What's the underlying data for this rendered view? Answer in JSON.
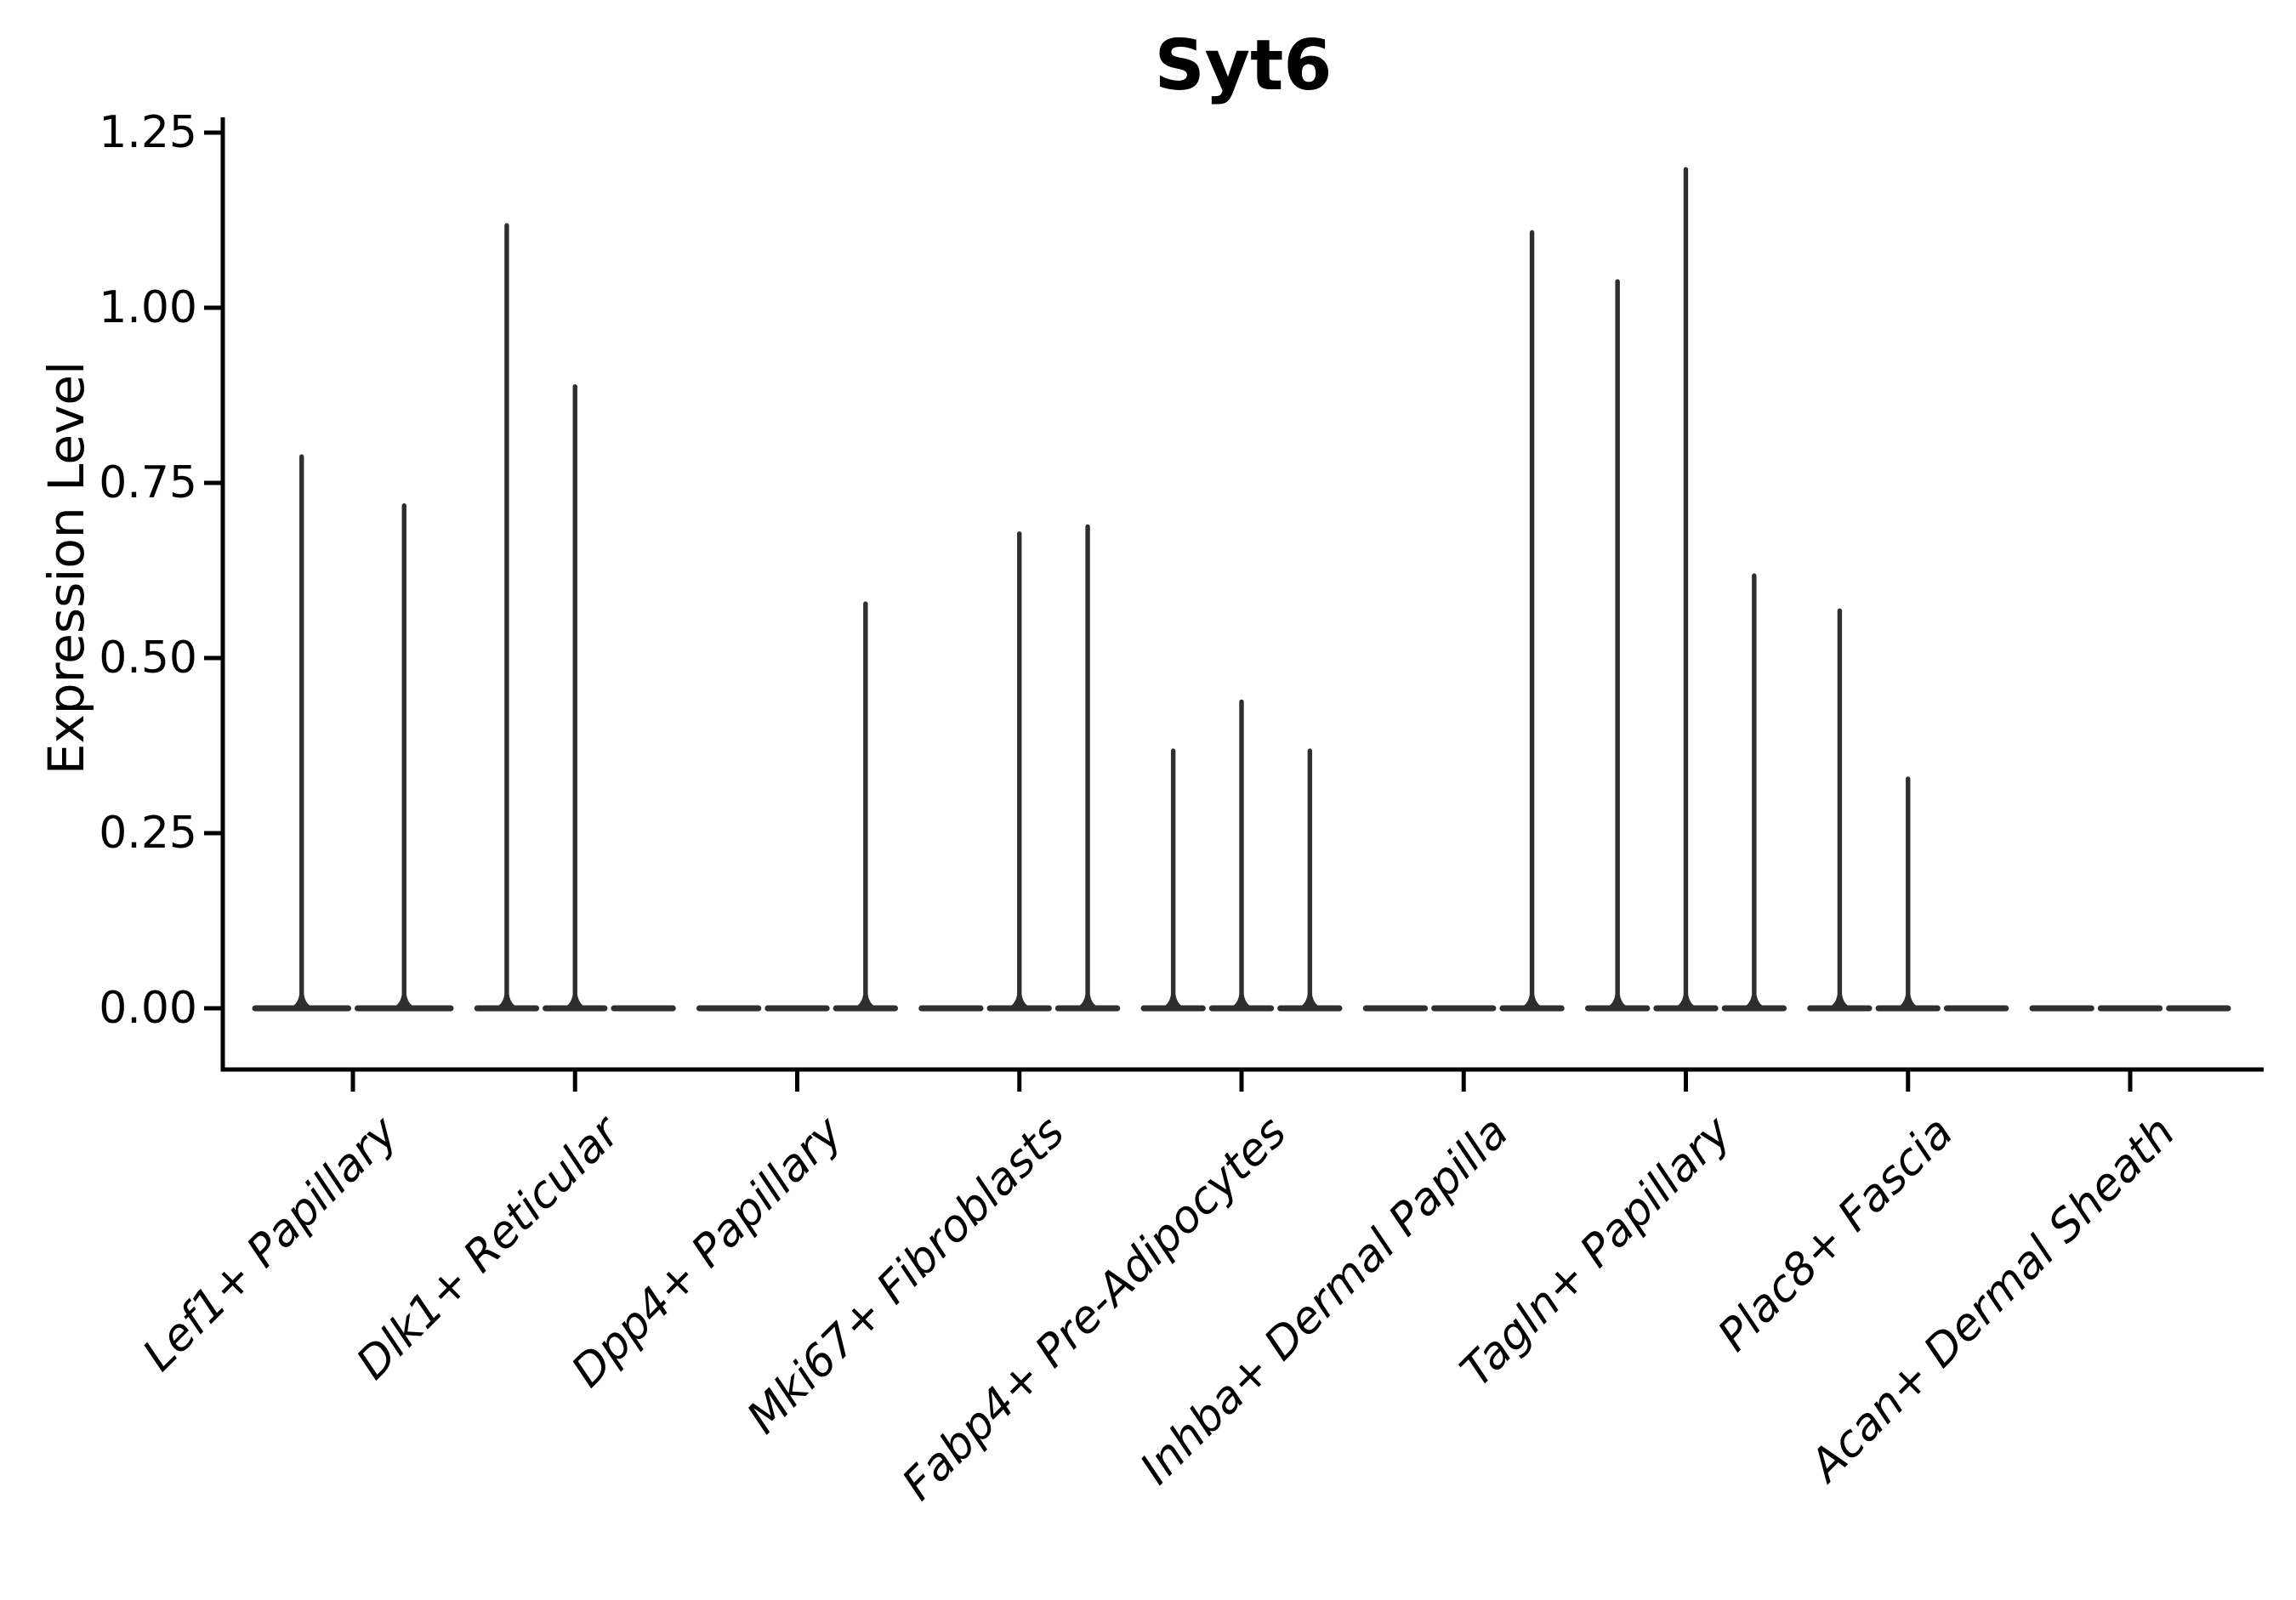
{
  "figure": {
    "title": "Syt6",
    "background_color": "#ffffff",
    "axis_color": "#000000",
    "violin_color": "#2e2e2e"
  },
  "chart_data": {
    "type": "violin",
    "title": "Syt6",
    "xlabel": "",
    "ylabel": "Expression Level",
    "ylim": [
      -0.09,
      1.27
    ],
    "yticks": [
      0,
      0.25,
      0.5,
      0.75,
      1.0,
      1.25
    ],
    "ytick_labels": [
      "0.00",
      "0.25",
      "0.50",
      "0.75",
      "1.00",
      "1.25"
    ],
    "grid": false,
    "legend": null,
    "xtick_rotation_deg": 45,
    "categories": [
      "Lef1+ Papillary",
      "Dlk1+ Reticular",
      "Dpp4+ Papillary",
      "Mki67+ Fibroblasts",
      "Fabp4+ Pre-Adipocytes",
      "Inhba+ Dermal Papilla",
      "Tagln+ Papillary",
      "Plac8+ Fascia",
      "Acan+ Dermal Sheath"
    ],
    "series": [
      {
        "category": "Lef1+ Papillary",
        "violin_maxima": [
          0.79,
          0.72
        ]
      },
      {
        "category": "Dlk1+ Reticular",
        "violin_maxima": [
          1.12,
          0.89,
          0
        ]
      },
      {
        "category": "Dpp4+ Papillary",
        "violin_maxima": [
          0,
          0,
          0.58
        ]
      },
      {
        "category": "Mki67+ Fibroblasts",
        "violin_maxima": [
          0,
          0.68,
          0.69
        ]
      },
      {
        "category": "Fabp4+ Pre-Adipocytes",
        "violin_maxima": [
          0.37,
          0.44,
          0.37
        ]
      },
      {
        "category": "Inhba+ Dermal Papilla",
        "violin_maxima": [
          0,
          0,
          1.11
        ]
      },
      {
        "category": "Tagln+ Papillary",
        "violin_maxima": [
          1.04,
          1.2,
          0.62
        ]
      },
      {
        "category": "Plac8+ Fascia",
        "violin_maxima": [
          0.57,
          0.33,
          0
        ]
      },
      {
        "category": "Acan+ Dermal Sheath",
        "violin_maxima": [
          0,
          0,
          0
        ]
      }
    ],
    "description": "Violin plot of Syt6 expression per fibroblast subtype; each category shows 2-3 flat violins collapsed at 0 with thin spikes rising to the maximum expression value of each violin."
  }
}
